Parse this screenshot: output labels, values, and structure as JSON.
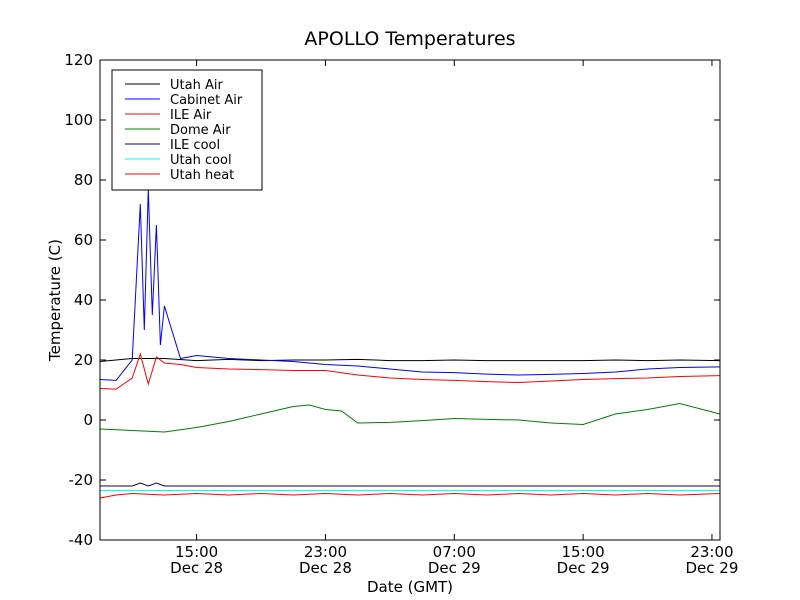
{
  "chart_data": {
    "type": "line",
    "title": "APOLLO Temperatures",
    "xlabel": "Date (GMT)",
    "ylabel": "Temperature (C)",
    "xlim": [
      "2011-12-28 09:00",
      "2011-12-29 23:30"
    ],
    "ylim": [
      -40,
      120
    ],
    "y_ticks": [
      -40,
      -20,
      0,
      20,
      40,
      60,
      80,
      100,
      120
    ],
    "y_tick_labels": [
      "-40",
      "-20",
      "0",
      "20",
      "40",
      "60",
      "80",
      "100",
      "120"
    ],
    "x_ticks": [
      {
        "x": "2011-12-28 15:00",
        "time": "15:00",
        "date": "Dec 28"
      },
      {
        "x": "2011-12-28 23:00",
        "time": "23:00",
        "date": "Dec 28"
      },
      {
        "x": "2011-12-29 07:00",
        "time": "07:00",
        "date": "Dec 29"
      },
      {
        "x": "2011-12-29 15:00",
        "time": "15:00",
        "date": "Dec 29"
      },
      {
        "x": "2011-12-29 23:00",
        "time": "23:00",
        "date": "Dec 29"
      }
    ],
    "grid": false,
    "legend_position": "top-left",
    "series": [
      {
        "name": "Utah Air",
        "color": "#000000",
        "x": [
          "2011-12-28 09:00",
          "2011-12-28 11:00",
          "2011-12-28 13:00",
          "2011-12-28 15:00",
          "2011-12-28 17:00",
          "2011-12-28 19:00",
          "2011-12-28 21:00",
          "2011-12-28 23:00",
          "2011-12-29 01:00",
          "2011-12-29 03:00",
          "2011-12-29 05:00",
          "2011-12-29 07:00",
          "2011-12-29 09:00",
          "2011-12-29 11:00",
          "2011-12-29 13:00",
          "2011-12-29 15:00",
          "2011-12-29 17:00",
          "2011-12-29 19:00",
          "2011-12-29 21:00",
          "2011-12-29 23:30"
        ],
        "y": [
          19.5,
          20.5,
          20.5,
          19.8,
          20.2,
          19.8,
          20.0,
          20.0,
          20.2,
          19.8,
          19.8,
          20.0,
          19.8,
          19.8,
          19.8,
          19.8,
          20.0,
          19.8,
          20.0,
          19.8
        ]
      },
      {
        "name": "Cabinet Air",
        "color": "#0000ff",
        "x": [
          "2011-12-28 09:00",
          "2011-12-28 10:00",
          "2011-12-28 11:00",
          "2011-12-28 11:30",
          "2011-12-28 11:45",
          "2011-12-28 12:00",
          "2011-12-28 12:15",
          "2011-12-28 12:30",
          "2011-12-28 12:45",
          "2011-12-28 13:00",
          "2011-12-28 14:00",
          "2011-12-28 15:00",
          "2011-12-28 17:00",
          "2011-12-28 19:00",
          "2011-12-28 21:00",
          "2011-12-28 23:00",
          "2011-12-29 01:00",
          "2011-12-29 03:00",
          "2011-12-29 05:00",
          "2011-12-29 07:00",
          "2011-12-29 09:00",
          "2011-12-29 11:00",
          "2011-12-29 13:00",
          "2011-12-29 15:00",
          "2011-12-29 17:00",
          "2011-12-29 19:00",
          "2011-12-29 21:00",
          "2011-12-29 23:30"
        ],
        "y": [
          13.5,
          13.2,
          20,
          72,
          30,
          77,
          35,
          65,
          25,
          38,
          20.5,
          21.5,
          20.5,
          20.0,
          19.5,
          18.5,
          18.0,
          17.0,
          16.0,
          15.8,
          15.3,
          15.0,
          15.2,
          15.5,
          16.0,
          17.0,
          17.5,
          17.7
        ]
      },
      {
        "name": "ILE Air",
        "color": "#ff0000",
        "x": [
          "2011-12-28 09:00",
          "2011-12-28 10:00",
          "2011-12-28 11:00",
          "2011-12-28 11:30",
          "2011-12-28 12:00",
          "2011-12-28 12:30",
          "2011-12-28 13:00",
          "2011-12-28 14:00",
          "2011-12-28 15:00",
          "2011-12-28 17:00",
          "2011-12-28 19:00",
          "2011-12-28 21:00",
          "2011-12-28 23:00",
          "2011-12-29 01:00",
          "2011-12-29 03:00",
          "2011-12-29 05:00",
          "2011-12-29 07:00",
          "2011-12-29 09:00",
          "2011-12-29 11:00",
          "2011-12-29 13:00",
          "2011-12-29 15:00",
          "2011-12-29 17:00",
          "2011-12-29 19:00",
          "2011-12-29 21:00",
          "2011-12-29 23:30"
        ],
        "y": [
          10.5,
          10.3,
          14,
          22,
          12,
          21,
          19,
          18.5,
          17.5,
          17.0,
          16.8,
          16.5,
          16.5,
          15.0,
          14.0,
          13.5,
          13.2,
          12.8,
          12.5,
          13.0,
          13.5,
          13.8,
          14.0,
          14.5,
          14.8
        ]
      },
      {
        "name": "Dome Air",
        "color": "#008000",
        "x": [
          "2011-12-28 09:00",
          "2011-12-28 11:00",
          "2011-12-28 13:00",
          "2011-12-28 15:00",
          "2011-12-28 17:00",
          "2011-12-28 19:00",
          "2011-12-28 21:00",
          "2011-12-28 22:00",
          "2011-12-28 23:00",
          "2011-12-29 00:00",
          "2011-12-29 01:00",
          "2011-12-29 03:00",
          "2011-12-29 05:00",
          "2011-12-29 07:00",
          "2011-12-29 09:00",
          "2011-12-29 11:00",
          "2011-12-29 13:00",
          "2011-12-29 15:00",
          "2011-12-29 17:00",
          "2011-12-29 19:00",
          "2011-12-29 21:00",
          "2011-12-29 23:30"
        ],
        "y": [
          -3.0,
          -3.5,
          -4.0,
          -2.5,
          -0.5,
          2.0,
          4.5,
          5.0,
          3.5,
          3.0,
          -1.0,
          -0.8,
          -0.2,
          0.5,
          0.2,
          0.0,
          -1.0,
          -1.5,
          2.0,
          3.5,
          5.5,
          2.0
        ]
      },
      {
        "name": "ILE cool",
        "color": "#000080",
        "x": [
          "2011-12-28 09:00",
          "2011-12-28 11:00",
          "2011-12-28 11:30",
          "2011-12-28 12:00",
          "2011-12-28 12:30",
          "2011-12-28 13:00",
          "2011-12-28 15:00",
          "2011-12-29 23:30"
        ],
        "y": [
          -22,
          -22,
          -21,
          -22,
          -21,
          -22,
          -22,
          -22
        ]
      },
      {
        "name": "Utah cool",
        "color": "#00ffff",
        "x": [
          "2011-12-28 09:00",
          "2011-12-28 15:00",
          "2011-12-28 23:00",
          "2011-12-29 07:00",
          "2011-12-29 15:00",
          "2011-12-29 23:30"
        ],
        "y": [
          -23.5,
          -23.5,
          -23.5,
          -23.5,
          -23.5,
          -23.5
        ]
      },
      {
        "name": "Utah heat",
        "color": "#ff0000",
        "x": [
          "2011-12-28 09:00",
          "2011-12-28 10:00",
          "2011-12-28 11:00",
          "2011-12-28 13:00",
          "2011-12-28 15:00",
          "2011-12-28 17:00",
          "2011-12-28 19:00",
          "2011-12-28 21:00",
          "2011-12-28 23:00",
          "2011-12-29 01:00",
          "2011-12-29 03:00",
          "2011-12-29 05:00",
          "2011-12-29 07:00",
          "2011-12-29 09:00",
          "2011-12-29 11:00",
          "2011-12-29 13:00",
          "2011-12-29 15:00",
          "2011-12-29 17:00",
          "2011-12-29 19:00",
          "2011-12-29 21:00",
          "2011-12-29 23:30"
        ],
        "y": [
          -26,
          -25,
          -24.5,
          -25,
          -24.5,
          -25,
          -24.5,
          -25,
          -24.5,
          -25,
          -24.5,
          -25,
          -24.5,
          -25,
          -24.5,
          -25,
          -24.5,
          -25,
          -24.5,
          -25,
          -24.5
        ]
      }
    ]
  }
}
